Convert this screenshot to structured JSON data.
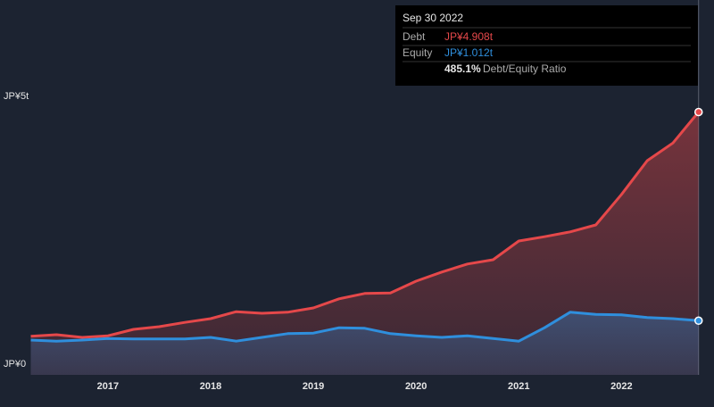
{
  "chart_data": {
    "type": "area",
    "x": [
      2016.25,
      2016.5,
      2016.75,
      2017.0,
      2017.25,
      2017.5,
      2017.75,
      2018.0,
      2018.25,
      2018.5,
      2018.75,
      2019.0,
      2019.25,
      2019.5,
      2019.75,
      2020.0,
      2020.25,
      2020.5,
      2020.75,
      2021.0,
      2021.25,
      2021.5,
      2021.75,
      2022.0,
      2022.25,
      2022.5,
      2022.75
    ],
    "series": [
      {
        "name": "Debt",
        "color": "#e5484a",
        "values": [
          0.72,
          0.75,
          0.7,
          0.73,
          0.85,
          0.9,
          0.98,
          1.05,
          1.18,
          1.15,
          1.17,
          1.25,
          1.42,
          1.52,
          1.53,
          1.75,
          1.92,
          2.07,
          2.15,
          2.5,
          2.58,
          2.67,
          2.8,
          3.37,
          4.0,
          4.33,
          4.908
        ]
      },
      {
        "name": "Equity",
        "color": "#2f8fdd",
        "values": [
          0.65,
          0.63,
          0.65,
          0.68,
          0.67,
          0.67,
          0.67,
          0.7,
          0.63,
          0.7,
          0.77,
          0.78,
          0.88,
          0.87,
          0.77,
          0.73,
          0.7,
          0.73,
          0.68,
          0.63,
          0.88,
          1.17,
          1.13,
          1.12,
          1.07,
          1.05,
          1.012
        ]
      }
    ],
    "xlim": [
      2015.95,
      2022.9
    ],
    "xticks": [
      2017,
      2018,
      2019,
      2020,
      2021,
      2022
    ],
    "ylim": [
      0,
      5
    ],
    "yticks": [
      {
        "value": 0,
        "label": "JP¥0"
      },
      {
        "value": 5,
        "label": "JP¥5t"
      }
    ],
    "grid": true,
    "tooltip": {
      "date": "Sep 30 2022",
      "debt_value": "JP¥4.908t",
      "equity_value": "JP¥1.012t",
      "ratio": "485.1%",
      "ratio_label": "Debt/Equity Ratio"
    }
  }
}
